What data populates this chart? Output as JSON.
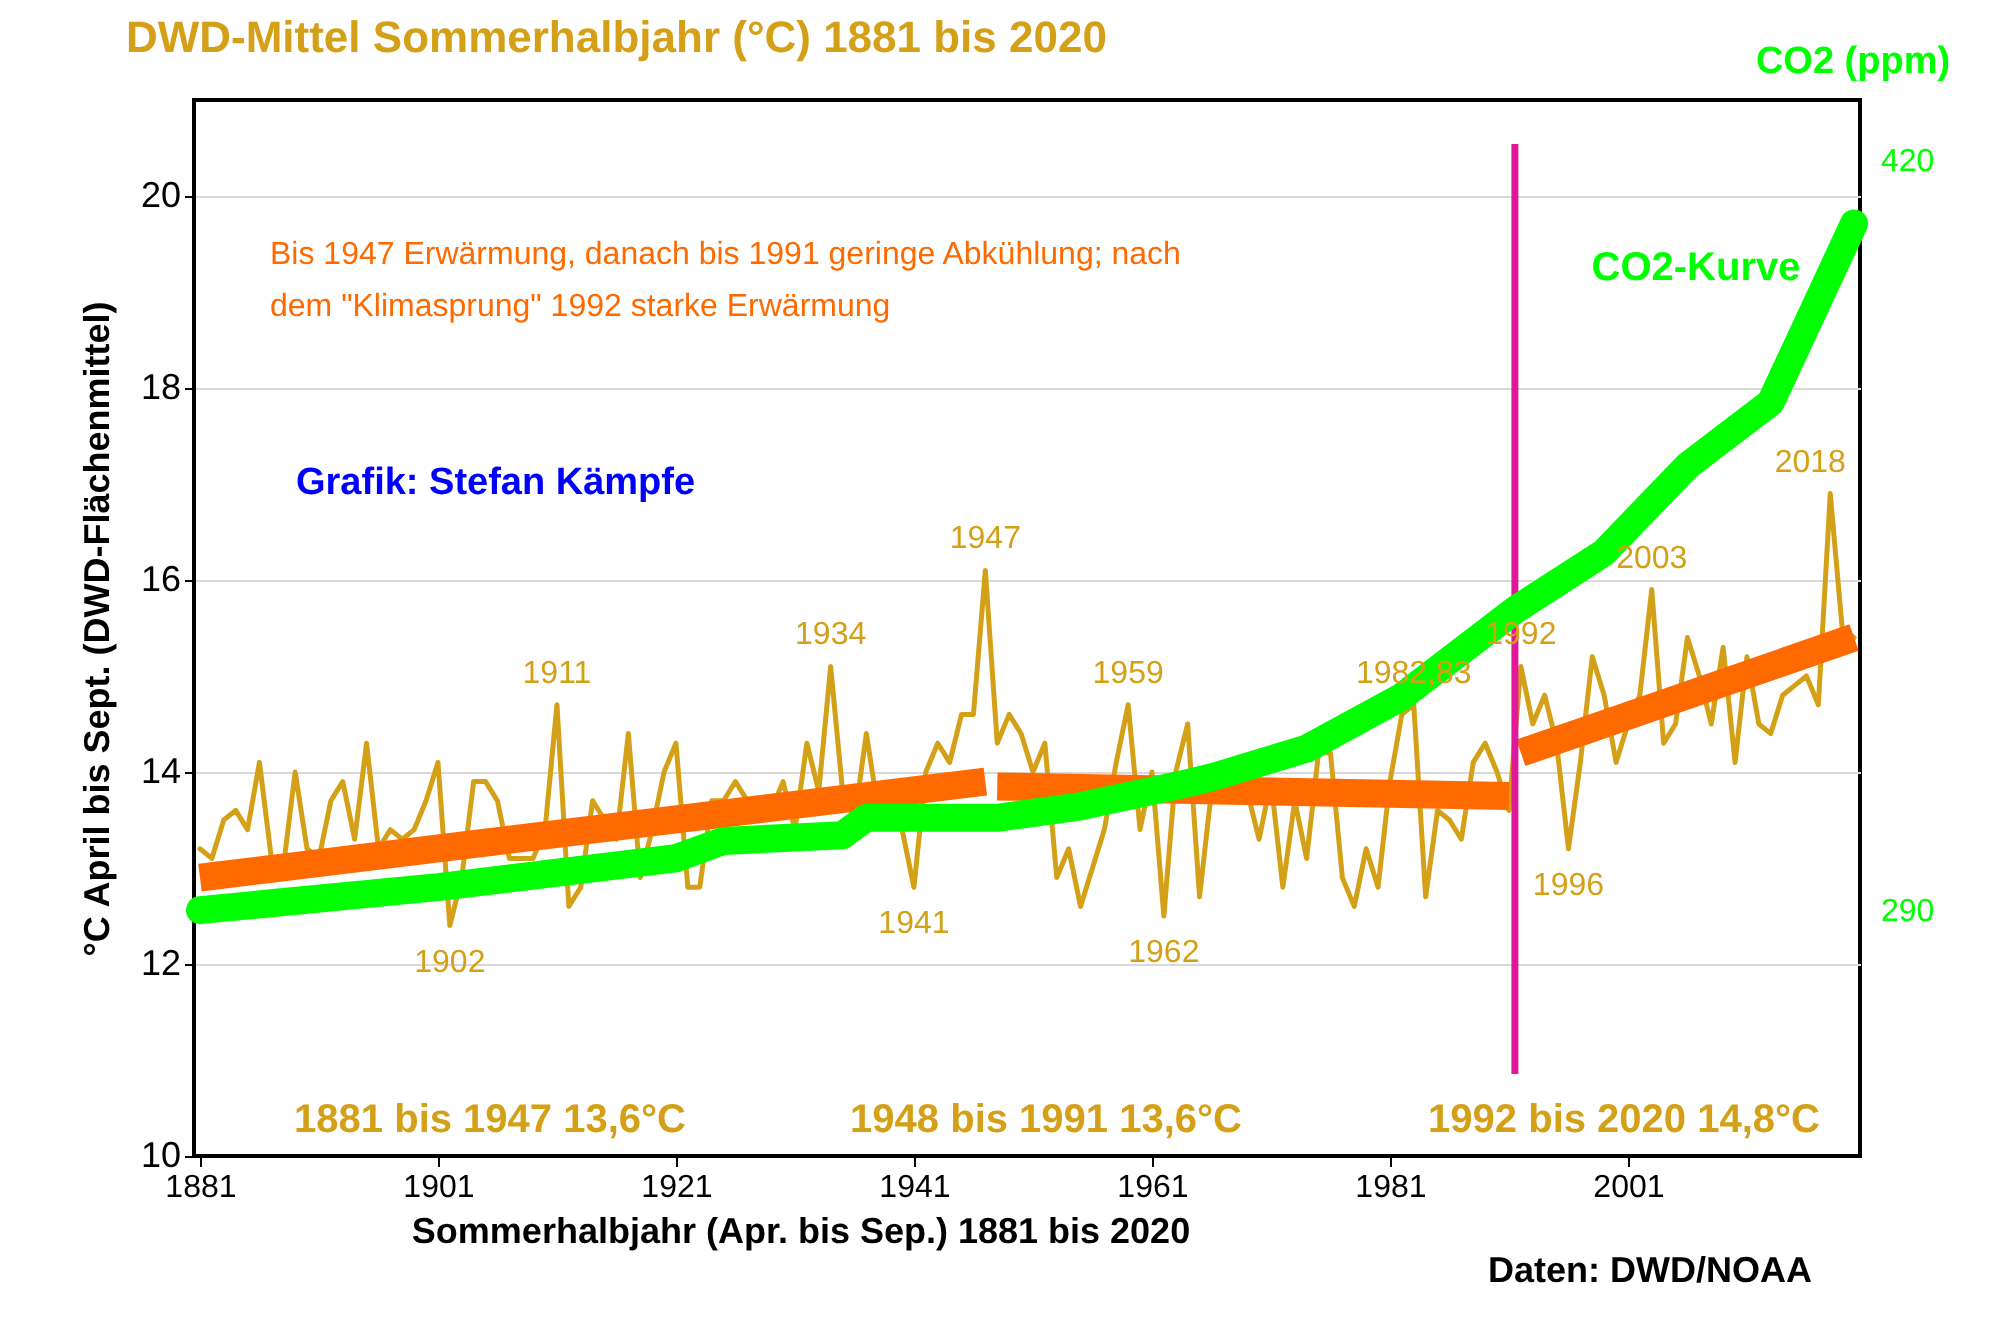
{
  "chart_data": {
    "type": "line",
    "title": "DWD-Mittel Sommerhalbjahr (°C) 1881 bis 2020",
    "xlabel": "Sommerhalbjahr (Apr. bis Sep.) 1881 bis 2020",
    "ylabel": "°C April bis Sept. (DWD-Flächenmittel)",
    "y2label": "CO2 (ppm)",
    "x": [
      1881,
      1882,
      1883,
      1884,
      1885,
      1886,
      1887,
      1888,
      1889,
      1890,
      1891,
      1892,
      1893,
      1894,
      1895,
      1896,
      1897,
      1898,
      1899,
      1900,
      1901,
      1902,
      1903,
      1904,
      1905,
      1906,
      1907,
      1908,
      1909,
      1910,
      1911,
      1912,
      1913,
      1914,
      1915,
      1916,
      1917,
      1918,
      1919,
      1920,
      1921,
      1922,
      1923,
      1924,
      1925,
      1926,
      1927,
      1928,
      1929,
      1930,
      1931,
      1932,
      1933,
      1934,
      1935,
      1936,
      1937,
      1938,
      1939,
      1940,
      1941,
      1942,
      1943,
      1944,
      1945,
      1946,
      1947,
      1948,
      1949,
      1950,
      1951,
      1952,
      1953,
      1954,
      1955,
      1956,
      1957,
      1958,
      1959,
      1960,
      1961,
      1962,
      1963,
      1964,
      1965,
      1966,
      1967,
      1968,
      1969,
      1970,
      1971,
      1972,
      1973,
      1974,
      1975,
      1976,
      1977,
      1978,
      1979,
      1980,
      1981,
      1982,
      1983,
      1984,
      1985,
      1986,
      1987,
      1988,
      1989,
      1990,
      1991,
      1992,
      1993,
      1994,
      1995,
      1996,
      1997,
      1998,
      1999,
      2000,
      2001,
      2002,
      2003,
      2004,
      2005,
      2006,
      2007,
      2008,
      2009,
      2010,
      2011,
      2012,
      2013,
      2014,
      2015,
      2016,
      2017,
      2018,
      2019,
      2020
    ],
    "series": [
      {
        "color": "#d4a017",
        "values": [
          13.2,
          13.1,
          13.5,
          13.6,
          13.4,
          14.1,
          13.1,
          13.0,
          14.0,
          13.2,
          13.1,
          13.7,
          13.9,
          13.3,
          14.3,
          13.2,
          13.4,
          13.3,
          13.4,
          13.7,
          14.1,
          12.4,
          12.9,
          13.9,
          13.9,
          13.7,
          13.1,
          13.1,
          13.1,
          13.4,
          14.7,
          12.6,
          12.8,
          13.7,
          13.5,
          13.3,
          14.4,
          12.9,
          13.4,
          14.0,
          14.3,
          12.8,
          12.8,
          13.7,
          13.7,
          13.9,
          13.7,
          13.6,
          13.6,
          13.9,
          13.4,
          14.3,
          13.8,
          15.1,
          13.8,
          13.5,
          14.4,
          13.6,
          13.6,
          13.4,
          12.8,
          14.0,
          14.3,
          14.1,
          14.6,
          14.6,
          16.1,
          14.3,
          14.6,
          14.4,
          14.0,
          14.3,
          12.9,
          13.2,
          12.6,
          13.0,
          13.4,
          14.1,
          14.7,
          13.4,
          14.0,
          12.5,
          14.0,
          14.5,
          12.7,
          13.8,
          13.9,
          13.7,
          13.8,
          13.3,
          13.9,
          12.8,
          13.7,
          13.1,
          14.2,
          14.2,
          12.9,
          12.6,
          13.2,
          12.8,
          13.9,
          14.6,
          14.7,
          12.7,
          13.6,
          13.5,
          13.3,
          14.1,
          14.3,
          14.0,
          13.6,
          15.1,
          14.5,
          14.8,
          14.3,
          13.2,
          14.1,
          15.2,
          14.8,
          14.1,
          14.5,
          14.8,
          15.9,
          14.3,
          14.5,
          15.4,
          15.0,
          14.5,
          15.3,
          14.1,
          15.2,
          14.5,
          14.4,
          14.8,
          14.9,
          15.0,
          14.7,
          16.9,
          15.5,
          15.4
        ]
      },
      {
        "color": "#ff6a00",
        "x": [
          1881,
          1947
        ],
        "values": [
          12.9,
          13.9
        ]
      },
      {
        "color": "#ff6a00",
        "x": [
          1948,
          1991
        ],
        "values": [
          13.85,
          13.75
        ]
      },
      {
        "color": "#ff6a00",
        "x": [
          1992,
          2020
        ],
        "values": [
          14.2,
          15.4
        ]
      },
      {
        "name": "CO2-Kurve",
        "color": "#00ff00",
        "axis": "y2",
        "x": [
          1881,
          1901,
          1921,
          1925,
          1935,
          1937,
          1948,
          1955,
          1964,
          1966,
          1974,
          1982,
          1991.5,
          1999,
          2006,
          2013,
          2020
        ],
        "values": [
          290,
          294,
          299,
          302,
          303,
          306,
          306,
          308,
          312,
          313,
          318,
          327,
          342,
          352,
          367,
          378,
          409
        ]
      }
    ],
    "xlim": [
      1880.5,
      2020.5
    ],
    "xticks": [
      1881,
      1901,
      1921,
      1941,
      1961,
      1981,
      2001
    ],
    "ylim": [
      10,
      21
    ],
    "yticks": [
      10,
      12,
      14,
      16,
      18,
      20
    ],
    "y2lim": [
      247.4,
      430.4
    ],
    "y2ticks": [
      290,
      420
    ],
    "ref_lines": [
      {
        "axis": "x",
        "value": 1991.5,
        "color": "#e0189a"
      }
    ],
    "grid": "y",
    "annotations": [
      "Bis 1947 Erwärmung, danach bis 1991 geringe Abkühlung; nach\ndem \"Klimasprung\" 1992 starke Erwärmung",
      "Grafik: Stefan Kämpfe",
      "1881 bis 1947 13,6°C",
      "1948 bis 1991 13,6°C",
      "1992 bis 2020 14,8°C",
      "Daten: DWD/NOAA",
      {
        "text": "1902",
        "x": 1902,
        "y": 12.4
      },
      {
        "text": "1911",
        "x": 1911,
        "y": 14.7
      },
      {
        "text": "1934",
        "x": 1934,
        "y": 15.1
      },
      {
        "text": "1941",
        "x": 1941,
        "y": 12.8
      },
      {
        "text": "1947",
        "x": 1947,
        "y": 16.1
      },
      {
        "text": "1959",
        "x": 1959,
        "y": 14.7
      },
      {
        "text": "1962",
        "x": 1962,
        "y": 12.5
      },
      {
        "text": "1982,83",
        "x": 1983,
        "y": 14.7
      },
      {
        "text": "1992",
        "x": 1992,
        "y": 15.1
      },
      {
        "text": "1996",
        "x": 1996,
        "y": 13.2
      },
      {
        "text": "2003",
        "x": 2003,
        "y": 15.9
      },
      {
        "text": "2018",
        "x": 2018,
        "y": 16.9
      }
    ]
  }
}
